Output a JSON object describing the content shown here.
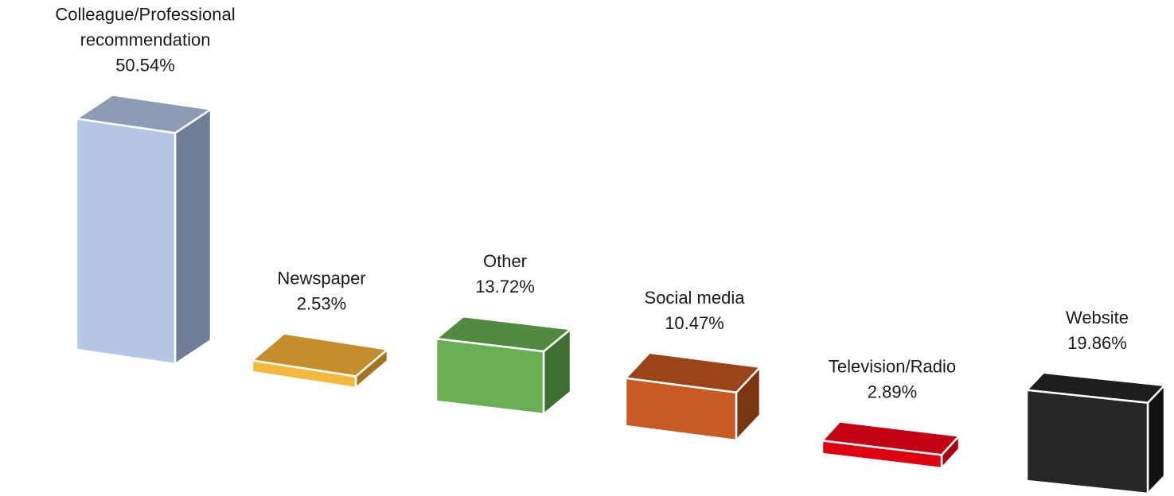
{
  "chart_data": {
    "type": "bar",
    "style": "3d-perspective",
    "categories": [
      "Colleague/Professional recommendation",
      "Newspaper",
      "Other",
      "Social media",
      "Television/Radio",
      "Website"
    ],
    "label_lines": [
      [
        "Colleague/Professional",
        "recommendation",
        "50.54%"
      ],
      [
        "Newspaper",
        "2.53%"
      ],
      [
        "Other",
        "13.72%"
      ],
      [
        "Social media",
        "10.47%"
      ],
      [
        "Television/Radio",
        "2.89%"
      ],
      [
        "Website",
        "19.86%"
      ]
    ],
    "values": [
      50.54,
      2.53,
      13.72,
      10.47,
      2.89,
      19.86
    ],
    "unit": "%",
    "colors": {
      "front": [
        "#b4c7e7",
        "#f4b93c",
        "#6aaf55",
        "#c85a24",
        "#dc0010",
        "#262626"
      ],
      "top": [
        "#8e9bb5",
        "#c48f2a",
        "#4f8a3f",
        "#9a4418",
        "#c40014",
        "#1e1e1e"
      ],
      "side": [
        "#6f7d96",
        "#a57420",
        "#3c6f31",
        "#7a3512",
        "#a8000f",
        "#111111"
      ]
    },
    "title": "",
    "xlabel": "",
    "ylabel": "",
    "axes_visible": false,
    "grid": false,
    "legend": "none"
  }
}
